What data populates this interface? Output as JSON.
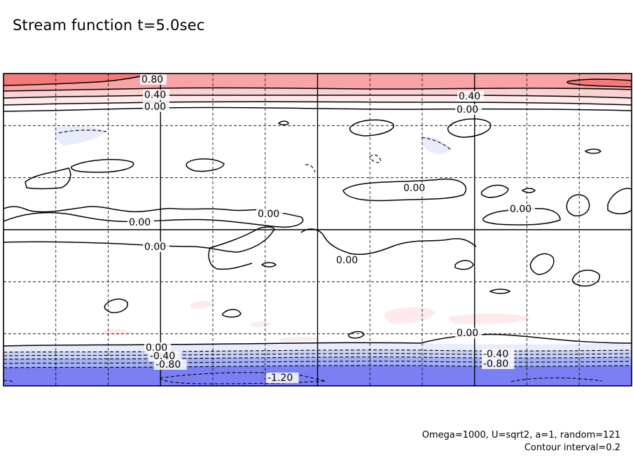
{
  "title": "Stream function t=5.0sec",
  "footnote": {
    "params": "Omega=1000, U=sqrt2, a=1, random=121",
    "interval": "Contour interval=0.2"
  },
  "colors": {
    "positive_strong": "#f47a7a",
    "positive_mid": "#f8a4a4",
    "positive_light": "#fbd2d2",
    "positive_faint": "#fdeaea",
    "negative_faint": "#e8ecfb",
    "negative_light": "#c9d1f7",
    "negative_mid": "#a2affa",
    "negative_strong": "#7b7ff4",
    "line": "#000000",
    "frame": "#000000"
  },
  "chart_data": {
    "type": "contour",
    "field": "stream function",
    "contour_interval": 0.2,
    "grid": "dashed",
    "grid_divisions": {
      "x": 12,
      "y": 6
    },
    "contour_labels": [
      "0.80",
      "0.40",
      "0.00",
      "0.40",
      "0.00",
      "0.00",
      "0.00",
      "0.00",
      "0.00",
      "0.00",
      "0.00",
      "0.00",
      "0.00",
      "-0.40",
      "-0.80",
      "-1.20",
      "-0.40",
      "-0.80"
    ],
    "bands_top_to_bottom": [
      "0.80",
      "0.60",
      "0.40",
      "0.20",
      "0.00"
    ],
    "bands_bottom": [
      "-0.20",
      "-0.40",
      "-0.60",
      "-0.80",
      "-1.00",
      "-1.20"
    ]
  }
}
